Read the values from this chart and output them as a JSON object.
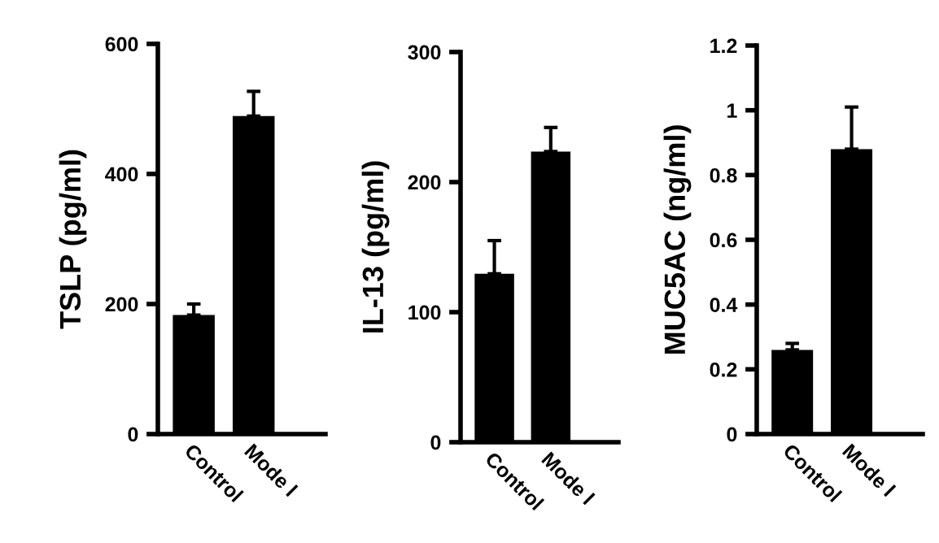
{
  "chart_data": [
    {
      "type": "bar",
      "ylabel": "TSLP (pg/ml)",
      "categories": [
        "Control",
        "Mode l"
      ],
      "values": [
        183,
        489
      ],
      "errors": [
        [
          183,
          200
        ],
        [
          489,
          527
        ]
      ],
      "color": "#000000",
      "ylim": [
        0,
        600
      ],
      "yticks": [
        0,
        200,
        400,
        600
      ],
      "grid": false
    },
    {
      "type": "bar",
      "ylabel": "IL-13 (pg/ml)",
      "categories": [
        "Control",
        "Mode l"
      ],
      "values": [
        129.5,
        223.5
      ],
      "errors": [
        [
          129.5,
          155
        ],
        [
          223.5,
          242
        ]
      ],
      "color": "#000000",
      "ylim": [
        0,
        300
      ],
      "yticks": [
        0,
        100,
        200,
        300
      ],
      "grid": false
    },
    {
      "type": "bar",
      "ylabel": "MUC5AC (ng/ml)",
      "categories": [
        "Control",
        "Mode l"
      ],
      "values": [
        0.26,
        0.88
      ],
      "errors": [
        [
          0.26,
          0.28
        ],
        [
          0.88,
          1.01
        ]
      ],
      "color": "#000000",
      "ylim": [
        0,
        1.2
      ],
      "yticks": [
        0,
        0.2,
        0.4,
        0.6,
        0.8,
        1,
        1.2
      ],
      "grid": false
    }
  ]
}
